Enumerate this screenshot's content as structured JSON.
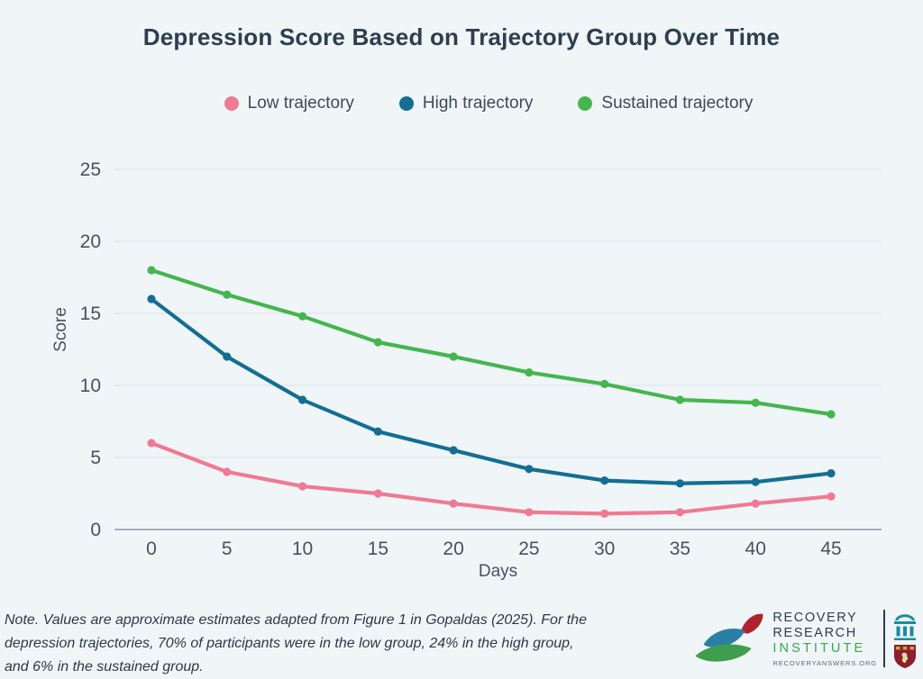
{
  "title": "Depression Score Based on Trajectory Group Over Time",
  "legend": {
    "items": [
      {
        "label": "Low trajectory",
        "color": "#ee7b92"
      },
      {
        "label": "High trajectory",
        "color": "#146e93"
      },
      {
        "label": "Sustained trajectory",
        "color": "#44b64e"
      }
    ]
  },
  "chart_data": {
    "type": "line",
    "title": "Depression Score Based on Trajectory Group Over Time",
    "x": [
      0,
      5,
      10,
      15,
      20,
      25,
      30,
      35,
      40,
      45
    ],
    "series": [
      {
        "name": "Low trajectory",
        "color": "#ee7b92",
        "values": [
          6,
          4,
          3,
          2.5,
          1.8,
          1.2,
          1.1,
          1.2,
          1.8,
          2.3
        ]
      },
      {
        "name": "High trajectory",
        "color": "#146e93",
        "values": [
          16,
          12,
          9,
          6.8,
          5.5,
          4.2,
          3.4,
          3.2,
          3.3,
          3.9
        ]
      },
      {
        "name": "Sustained trajectory",
        "color": "#44b64e",
        "values": [
          18,
          16.3,
          14.8,
          13,
          12,
          10.9,
          10.1,
          9,
          8.8,
          8
        ]
      }
    ],
    "xlabel": "Days",
    "ylabel": "Score",
    "ylim": [
      0,
      25
    ],
    "yticks": [
      0,
      5,
      10,
      15,
      20,
      25
    ],
    "grid": true,
    "legend_position": "top",
    "markers": true
  },
  "note": {
    "lines": [
      "Note. Values are approximate estimates adapted from Figure 1 in Gopaldas (2025). For the",
      "depression trajectories, 70% of participants were in the low group, 24% in the high group,",
      "and 6% in the sustained group."
    ]
  },
  "logo": {
    "line1": "RECOVERY",
    "line2": "RESEARCH",
    "line3": "INSTITUTE",
    "url": "RECOVERYANSWERS.ORG",
    "leaf_colors": {
      "teal": "#2980a4",
      "red": "#b02230",
      "green": "#3f9e4d"
    },
    "crest_colors": {
      "columns": "#1d8a9d",
      "shield": "#8a1f2e",
      "gold": "#caa53f"
    }
  },
  "colors": {
    "background": "#f0f5f8",
    "title_text": "#2d3e50",
    "tick_text": "#46525e",
    "gridline": "#dfe6ea",
    "axis_line": "#8d979f"
  }
}
